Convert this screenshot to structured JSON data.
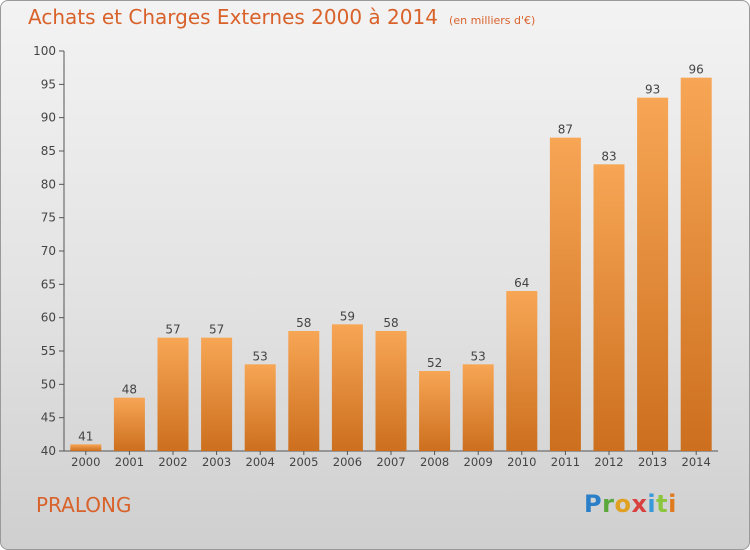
{
  "header": {
    "title": "Achats et Charges Externes 2000 à 2014",
    "subtitle": "(en milliers d'€)"
  },
  "footer": {
    "commune": "PRALONG",
    "logo_text": "Proxiti"
  },
  "colors": {
    "accent": "#d9622b",
    "bar_light": "#f7a655",
    "bar_dark": "#cc6f1e",
    "axis": "#555555",
    "grid": "#555555"
  },
  "chart_data": {
    "type": "bar",
    "title": "Achats et Charges Externes 2000 à 2014",
    "subtitle": "(en milliers d'€)",
    "xlabel": "",
    "ylabel": "",
    "categories": [
      "2000",
      "2001",
      "2002",
      "2003",
      "2004",
      "2005",
      "2006",
      "2007",
      "2008",
      "2009",
      "2010",
      "2011",
      "2012",
      "2013",
      "2014"
    ],
    "values": [
      41,
      48,
      57,
      57,
      53,
      58,
      59,
      58,
      52,
      53,
      64,
      87,
      83,
      93,
      96
    ],
    "ylim": [
      40,
      100
    ],
    "yticks": [
      40,
      45,
      50,
      55,
      60,
      65,
      70,
      75,
      80,
      85,
      90,
      95,
      100
    ],
    "grid": false,
    "legend": "none"
  }
}
